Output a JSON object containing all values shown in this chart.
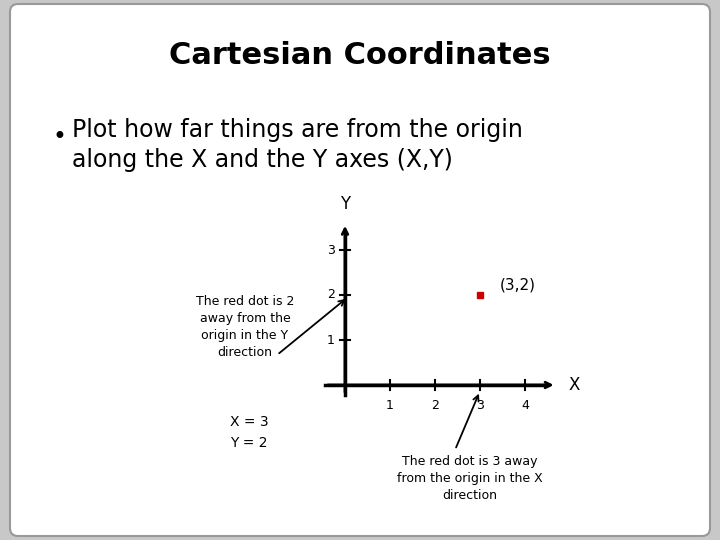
{
  "title": "Cartesian Coordinates",
  "bullet_text_line1": "Plot how far things are from the origin",
  "bullet_text_line2": "along the X and the Y axes (X,Y)",
  "point": [
    3,
    2
  ],
  "point_label": "(3,2)",
  "point_color": "#cc0000",
  "x_axis_label": "X",
  "y_axis_label": "Y",
  "x_ticks": [
    1,
    2,
    3,
    4
  ],
  "y_ticks": [
    1,
    2,
    3
  ],
  "annotation_y_text": "The red dot is 2\naway from the\norigin in the Y\ndirection",
  "annotation_x_text": "The red dot is 3 away\nfrom the origin in the X\ndirection",
  "xy_label": "X = 3\nY = 2",
  "bg_color": "#c8c8c8",
  "card_color": "#ffffff",
  "title_fontsize": 22,
  "bullet_fontsize": 17,
  "axis_label_fontsize": 11,
  "tick_fontsize": 9,
  "annotation_fontsize": 9
}
